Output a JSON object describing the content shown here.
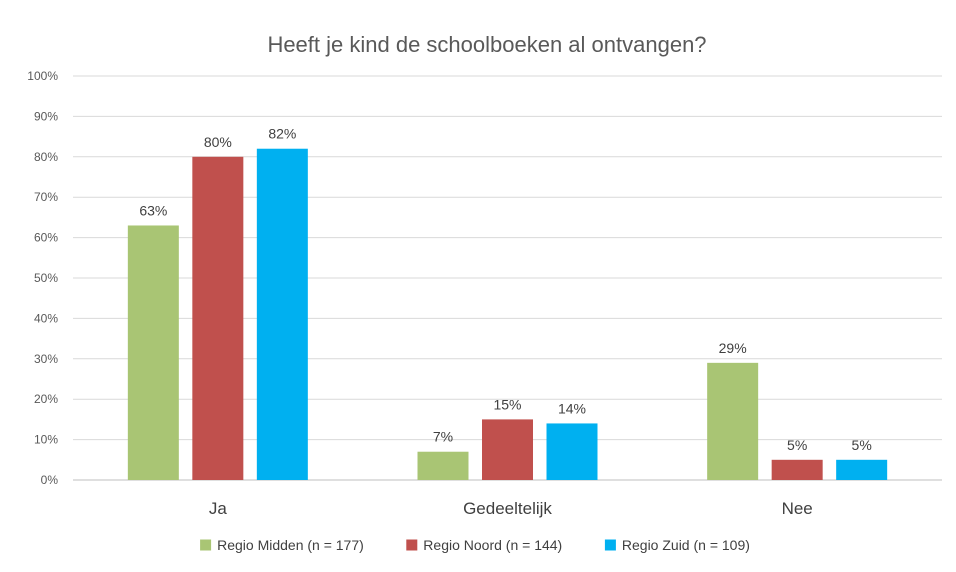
{
  "chart_data": {
    "type": "bar",
    "title": "Heeft je kind de schoolboeken al ontvangen?",
    "xlabel": "",
    "ylabel": "",
    "ylim": [
      0,
      100
    ],
    "y_ticks": [
      "0%",
      "10%",
      "20%",
      "30%",
      "40%",
      "50%",
      "60%",
      "70%",
      "80%",
      "90%",
      "100%"
    ],
    "y_tick_values": [
      0,
      10,
      20,
      30,
      40,
      50,
      60,
      70,
      80,
      90,
      100
    ],
    "categories": [
      "Ja",
      "Gedeeltelijk",
      "Nee"
    ],
    "series": [
      {
        "name": "Regio Midden (n = 177)",
        "color": "#a9c574",
        "values": [
          63,
          7,
          29
        ],
        "labels": [
          "63%",
          "7%",
          "29%"
        ]
      },
      {
        "name": "Regio Noord (n = 144)",
        "color": "#c0504d",
        "values": [
          80,
          15,
          5
        ],
        "labels": [
          "80%",
          "15%",
          "5%"
        ]
      },
      {
        "name": "Regio Zuid (n = 109)",
        "color": "#00b0f0",
        "values": [
          82,
          14,
          5
        ],
        "labels": [
          "82%",
          "14%",
          "5%"
        ]
      }
    ],
    "grid": true,
    "legend_position": "bottom"
  }
}
